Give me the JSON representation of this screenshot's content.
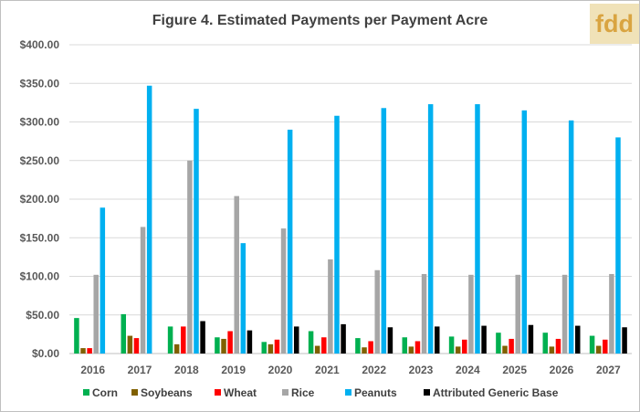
{
  "title": "Figure 4. Estimated Payments per Payment Acre",
  "logo_text": "fdd",
  "chart_data": {
    "type": "bar",
    "title": "Figure 4. Estimated Payments per Payment Acre",
    "xlabel": "",
    "ylabel": "",
    "categories": [
      "2016",
      "2017",
      "2018",
      "2019",
      "2020",
      "2021",
      "2022",
      "2023",
      "2024",
      "2025",
      "2026",
      "2027"
    ],
    "y_ticks": [
      "$0.00",
      "$50.00",
      "$100.00",
      "$150.00",
      "$200.00",
      "$250.00",
      "$300.00",
      "$350.00",
      "$400.00"
    ],
    "ylim": [
      0,
      400
    ],
    "grid": true,
    "legend_position": "bottom",
    "series": [
      {
        "name": "Corn",
        "color": "#00b050",
        "values": [
          46,
          51,
          35,
          21,
          15,
          29,
          20,
          21,
          22,
          27,
          27,
          23
        ]
      },
      {
        "name": "Soybeans",
        "color": "#806000",
        "values": [
          7,
          23,
          12,
          19,
          12,
          10,
          8,
          9,
          9,
          10,
          9,
          10
        ]
      },
      {
        "name": "Wheat",
        "color": "#ff0000",
        "values": [
          7,
          20,
          35,
          29,
          18,
          21,
          16,
          16,
          18,
          19,
          19,
          18
        ]
      },
      {
        "name": "Rice",
        "color": "#a6a6a6",
        "values": [
          102,
          164,
          250,
          204,
          162,
          122,
          108,
          103,
          102,
          102,
          102,
          103
        ]
      },
      {
        "name": "Peanuts",
        "color": "#00b0f0",
        "values": [
          189,
          347,
          317,
          143,
          290,
          308,
          318,
          323,
          323,
          315,
          302,
          280
        ]
      },
      {
        "name": "Attributed Generic Base",
        "color": "#000000",
        "values": [
          0,
          0,
          42,
          30,
          35,
          38,
          34,
          35,
          36,
          37,
          36,
          34
        ]
      }
    ]
  }
}
